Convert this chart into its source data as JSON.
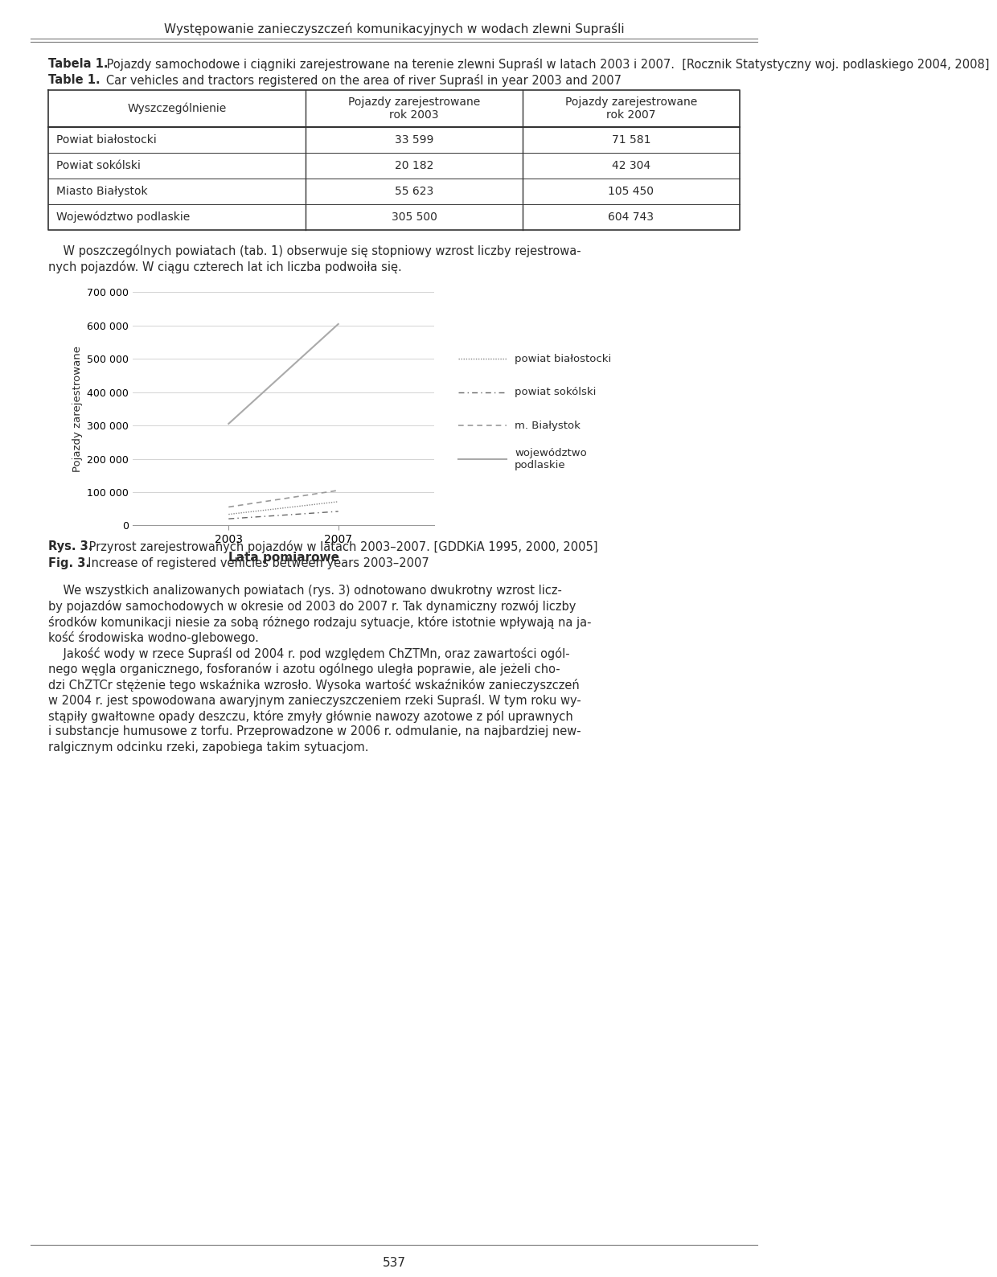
{
  "page_title": "Występowanie zanieczyszczeń komunikacyjnych w wodach zlewni Supraśli",
  "table_title_pl_bold": "Tabela 1.",
  "table_title_pl_rest": " Pojazdy samochodowe i ciągniki zarejestrowane na terenie zlewni Supraśl w latach 2003 i 2007.  [Rocznik Statystyczny woj. podlaskiego 2004, 2008]",
  "table_title_en_bold": "Table 1.",
  "table_title_en_rest": "   Car vehicles and tractors registered on the area of river Supraśl in year 2003 and 2007",
  "col_header_1": "Wyszczególnienie",
  "col_header_2": "Pojazdy zarejestrowane\nrok 2003",
  "col_header_3": "Pojazdy zarejestrowane\nrok 2007",
  "rows": [
    [
      "Powiat białostocki",
      "33 599",
      "71 581"
    ],
    [
      "Powiat sokólski",
      "20 182",
      "42 304"
    ],
    [
      "Miasto Białystok",
      "55 623",
      "105 450"
    ],
    [
      "Województwo podlaskie",
      "305 500",
      "604 743"
    ]
  ],
  "para_line1": "    W poszczególnych powiatach (tab. 1) obserwuje się stopniowy wzrost liczby rejestrowa-",
  "para_line2": "nych pojazdów. W ciągu czterech lat ich liczba podwoiła się.",
  "chart_ylabel": "Pojazdy zarejestrowane",
  "chart_xlabel": "Lata pomiarowe",
  "chart_yticks": [
    0,
    100000,
    200000,
    300000,
    400000,
    500000,
    600000,
    700000
  ],
  "chart_ytick_labels": [
    "0",
    "100 000",
    "200 000",
    "300 000",
    "400 000",
    "500 000",
    "600 000",
    "700 000"
  ],
  "series": [
    {
      "name": "powiat białostocki",
      "v2003": 33599,
      "v2007": 71581
    },
    {
      "name": "powiat sokólski",
      "v2003": 20182,
      "v2007": 42304
    },
    {
      "name": "m. Białystok",
      "v2003": 55623,
      "v2007": 105450
    },
    {
      "name": "województwo\npodlaskie",
      "v2003": 305500,
      "v2007": 604743
    }
  ],
  "cap_pl_bold": "Rys. 3.",
  "cap_pl_rest": " Przyrost zarejestrowanych pojazdów w latach 2003–2007. [GDDKiA 1995, 2000, 2005]",
  "cap_en_bold": "Fig. 3.",
  "cap_en_rest": "  Increase of registered vehicles between years 2003–2007",
  "body_lines": [
    "    We wszystkich analizowanych powiatach (rys. 3) odnotowano dwukrotny wzrost licz-",
    "by pojazdów samochodowych w okresie od 2003 do 2007 r. Tak dynamiczny rozwój liczby",
    "środków komunikacji niesie za sobą różnego rodzaju sytuacje, które istotnie wpływają na ja-",
    "kość środowiska wodno-glebowego.",
    "    Jakość wody w rzece Supraśl od 2004 r. pod względem ChZTMn, oraz zawartości ogól-",
    "nego węgla organicznego, fosforanów i azotu ogólnego uległa poprawie, ale jeżeli cho-",
    "dzi ChZTCr stężenie tego wskaźnika wzrosło. Wysoka wartość wskaźników zanieczyszczeń",
    "w 2004 r. jest spowodowana awaryjnym zanieczyszczeniem rzeki Supraśl. W tym roku wy-",
    "stąpiły gwałtowne opady deszczu, które zmyły głównie nawozy azotowe z pól uprawnych",
    "i substancje humusowe z torfu. Przeprowadzone w 2006 r. odmulanie, na najbardziej new-",
    "ralgicznym odcinku rzeki, zapobiega takim sytuacjom."
  ],
  "page_number": "537",
  "bg_color": "#ffffff",
  "text_color": "#2a2a2a"
}
